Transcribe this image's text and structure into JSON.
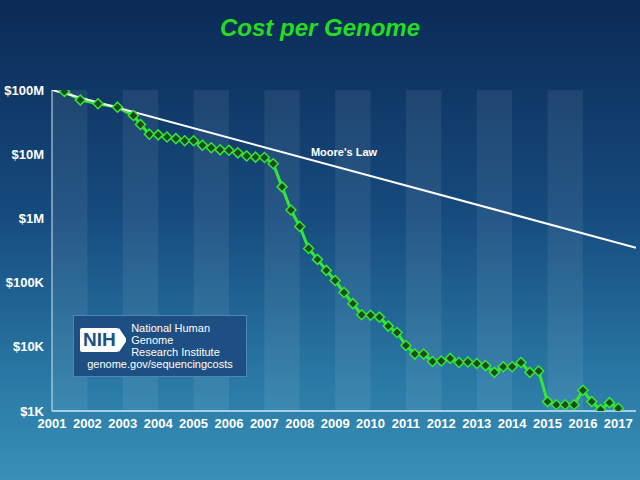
{
  "chart_data": {
    "type": "line",
    "title": "Cost per Genome",
    "log": "y",
    "xlim": [
      2001,
      2017.5
    ],
    "xticks": [
      2001,
      2002,
      2003,
      2004,
      2005,
      2006,
      2007,
      2008,
      2009,
      2010,
      2011,
      2012,
      2013,
      2014,
      2015,
      2016,
      2017
    ],
    "ylim": [
      1000,
      100000000
    ],
    "yticks": [
      {
        "value": 1000,
        "label": "$1K"
      },
      {
        "value": 10000,
        "label": "$10K"
      },
      {
        "value": 100000,
        "label": "$100K"
      },
      {
        "value": 1000000,
        "label": "$1M"
      },
      {
        "value": 10000000,
        "label": "$10M"
      },
      {
        "value": 100000000,
        "label": "$100M"
      }
    ],
    "series": [
      {
        "color": "#33e833",
        "marker": "diamond",
        "x": [
          2001.35,
          2001.8,
          2002.3,
          2002.85,
          2003.3,
          2003.5,
          2003.75,
          2004.0,
          2004.25,
          2004.5,
          2004.75,
          2005.0,
          2005.25,
          2005.5,
          2005.75,
          2006.0,
          2006.25,
          2006.5,
          2006.75,
          2007.0,
          2007.25,
          2007.5,
          2007.75,
          2008.0,
          2008.25,
          2008.5,
          2008.75,
          2009.0,
          2009.25,
          2009.5,
          2009.75,
          2010.0,
          2010.25,
          2010.5,
          2010.75,
          2011.0,
          2011.25,
          2011.5,
          2011.75,
          2012.0,
          2012.25,
          2012.5,
          2012.75,
          2013.0,
          2013.25,
          2013.5,
          2013.75,
          2014.0,
          2014.25,
          2014.5,
          2014.75,
          2015.0,
          2015.25,
          2015.5,
          2015.75,
          2016.0,
          2016.25,
          2016.5,
          2016.75,
          2017.0
        ],
        "values": [
          95000000,
          70000000,
          61000000,
          54000000,
          40000000,
          29000000,
          20500000,
          20000000,
          18500000,
          17500000,
          16200000,
          16200000,
          13800000,
          12600000,
          11700000,
          11500000,
          10500000,
          9400000,
          9000000,
          8900000,
          7100000,
          3100000,
          1350000,
          750000,
          340000,
          230000,
          155000,
          108000,
          70000,
          47000,
          31500,
          31000,
          29000,
          21000,
          16700,
          10500,
          7700,
          7700,
          5900,
          6000,
          6600,
          5700,
          5800,
          5500,
          5100,
          4000,
          4900,
          4900,
          5700,
          4000,
          4200,
          1400,
          1250,
          1250,
          1250,
          2100,
          1400,
          1050,
          1350,
          1100
        ]
      },
      {
        "name": "Moore's Law",
        "color": "#ffffff",
        "marker": "none",
        "x": [
          2001,
          2017.5
        ],
        "values": [
          100000000,
          350000
        ]
      }
    ],
    "annotations": [
      "NIH",
      "National Human Genome",
      "Research Institute",
      "genome.gov/sequencingcosts"
    ]
  }
}
